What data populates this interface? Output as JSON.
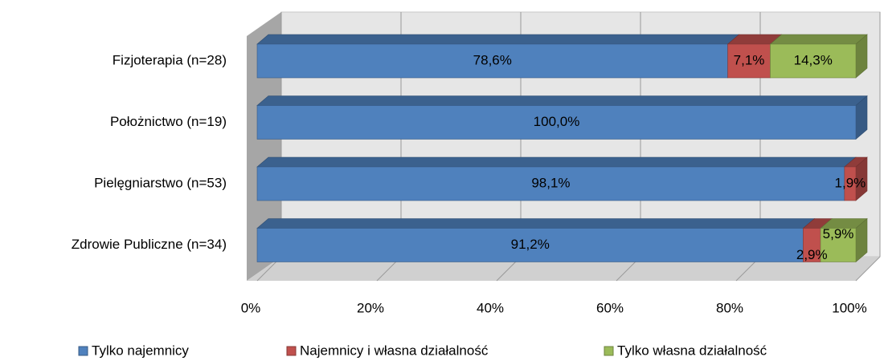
{
  "chart_data": {
    "type": "stacked_bar_3d_horizontal",
    "categories": [
      "Fizjoterapia (n=28)",
      "Położnictwo (n=19)",
      "Pielęgniarstwo (n=53)",
      "Zdrowie Publiczne (n=34)"
    ],
    "series": [
      {
        "name": "Tylko najemnicy",
        "color": "#4f81bd",
        "values": [
          78.6,
          100.0,
          98.1,
          91.2
        ],
        "value_labels": [
          "78,6%",
          "100,0%",
          "98,1%",
          "91,2%"
        ]
      },
      {
        "name": "Najemnicy i własna działalność",
        "color": "#c0504d",
        "values": [
          7.1,
          null,
          1.9,
          2.9
        ],
        "value_labels": [
          "7,1%",
          null,
          "1,9%",
          "2,9%"
        ]
      },
      {
        "name": "Tylko własna działalność",
        "color": "#9bbb59",
        "values": [
          14.3,
          null,
          null,
          5.9
        ],
        "value_labels": [
          "14,3%",
          null,
          null,
          "5,9%"
        ]
      }
    ],
    "xlim": [
      0,
      100
    ],
    "xticks": [
      {
        "value": 0,
        "label": "0%"
      },
      {
        "value": 20,
        "label": "20%"
      },
      {
        "value": 40,
        "label": "40%"
      },
      {
        "value": 60,
        "label": "60%"
      },
      {
        "value": 80,
        "label": "80%"
      },
      {
        "value": 100,
        "label": "100%"
      }
    ],
    "grid": true,
    "legend": "bottom"
  }
}
